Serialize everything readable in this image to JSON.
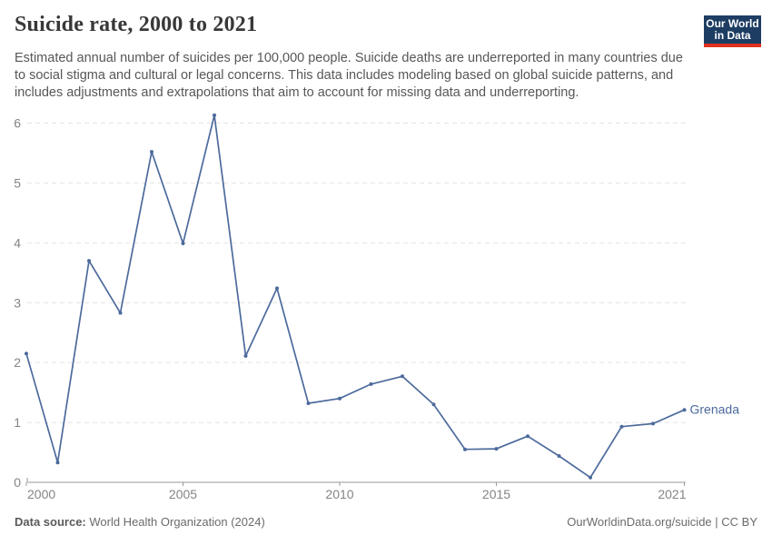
{
  "header": {
    "title": "Suicide rate, 2000 to 2021",
    "subtitle": "Estimated annual number of suicides per 100,000 people. Suicide deaths are underreported in many countries due to social stigma and cultural or legal concerns. This data includes modeling based on global suicide patterns, and includes adjustments and extrapolations that aim to account for missing data and underreporting."
  },
  "logo": {
    "line1": "Our World",
    "line2": "in Data",
    "bg_color": "#1d3d63",
    "accent_color": "#e0321e",
    "text_color": "#ffffff"
  },
  "chart_data": {
    "type": "line",
    "title": "Suicide rate, 2000 to 2021",
    "xlabel": "",
    "ylabel": "",
    "xlim": [
      2000,
      2021
    ],
    "ylim": [
      0,
      6
    ],
    "grid": "horizontal-dashed",
    "legend_position": "end-of-line-label",
    "x": [
      2000,
      2001,
      2002,
      2003,
      2004,
      2005,
      2006,
      2007,
      2008,
      2009,
      2010,
      2011,
      2012,
      2013,
      2014,
      2015,
      2016,
      2017,
      2018,
      2019,
      2020,
      2021
    ],
    "series": [
      {
        "name": "Grenada",
        "color": "#4c6a9c",
        "values": [
          2.15,
          0.33,
          3.7,
          2.83,
          5.52,
          3.99,
          6.13,
          2.11,
          3.24,
          1.32,
          1.4,
          1.64,
          1.77,
          1.3,
          0.55,
          0.56,
          0.77,
          0.44,
          0.08,
          0.93,
          0.98,
          1.21
        ]
      }
    ],
    "y_ticks": [
      0,
      1,
      2,
      3,
      4,
      5,
      6
    ],
    "x_ticks": [
      {
        "value": 2000,
        "label": "2000",
        "anchor": "start"
      },
      {
        "value": 2005,
        "label": "2005",
        "anchor": "middle"
      },
      {
        "value": 2010,
        "label": "2010",
        "anchor": "middle"
      },
      {
        "value": 2015,
        "label": "2015",
        "anchor": "middle"
      },
      {
        "value": 2021,
        "label": "2021",
        "anchor": "end"
      }
    ],
    "colors": {
      "grid": "#e2e2e2",
      "axis": "#9a9a9a",
      "tick_label": "#848484"
    }
  },
  "footer": {
    "source_label": "Data source:",
    "source_value": " World Health Organization (2024)",
    "right_text": "OurWorldinData.org/suicide | CC BY"
  }
}
